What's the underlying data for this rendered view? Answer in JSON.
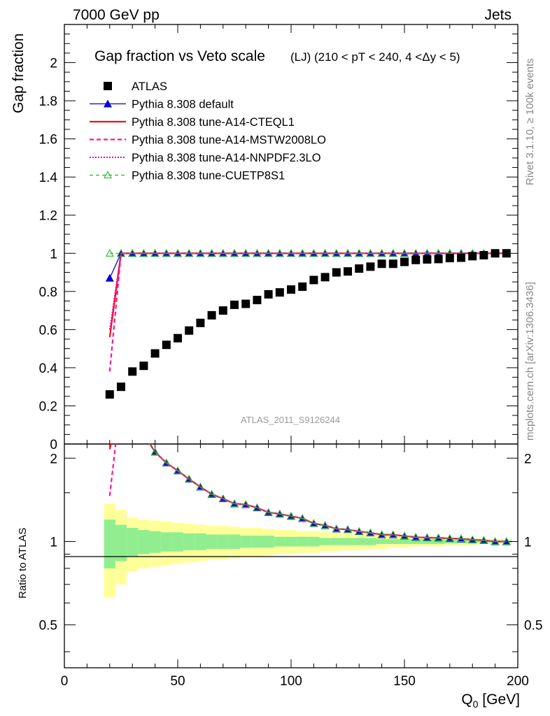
{
  "header": {
    "left": "7000 GeV pp",
    "right": "Jets"
  },
  "side_labels": {
    "upper": "Rivet 3.1.10, ≥ 100k events",
    "lower": "mcplots.cern.ch [arXiv:1306.3436]"
  },
  "watermark": "ATLAS_2011_S9126244",
  "chart_data": {
    "type": "scatter",
    "title": "Gap fraction vs Veto scale",
    "subtitle": "(LJ) (210 < pT < 240, 4 <Δy < 5)",
    "xlabel": "Q",
    "xlabel_sub": "0",
    "xlabel_unit": " [GeV]",
    "ylabel": "Gap fraction",
    "ratio_ylabel": "Ratio to ATLAS",
    "xlim": [
      0,
      200
    ],
    "ylim": [
      0,
      2.2
    ],
    "ratio_ylim": [
      0.35,
      2.25
    ],
    "x_ticks": [
      "0",
      "50",
      "100",
      "150",
      "200"
    ],
    "y_ticks": [
      "0",
      "0.2",
      "0.4",
      "0.6",
      "0.8",
      "1",
      "1.2",
      "1.4",
      "1.6",
      "1.8",
      "2"
    ],
    "ratio_ticks": [
      "0.5",
      "1",
      "2"
    ],
    "legend_position": "top-left",
    "x": [
      20,
      25,
      30,
      35,
      40,
      45,
      50,
      55,
      60,
      65,
      70,
      75,
      80,
      85,
      90,
      95,
      100,
      105,
      110,
      115,
      120,
      125,
      130,
      135,
      140,
      145,
      150,
      155,
      160,
      165,
      170,
      175,
      180,
      185,
      190,
      195
    ],
    "series": [
      {
        "name": "ATLAS",
        "color": "#000000",
        "marker": "square",
        "values": [
          0.26,
          0.3,
          0.38,
          0.41,
          0.475,
          0.52,
          0.555,
          0.595,
          0.635,
          0.675,
          0.7,
          0.73,
          0.735,
          0.755,
          0.785,
          0.795,
          0.81,
          0.825,
          0.86,
          0.875,
          0.9,
          0.905,
          0.92,
          0.93,
          0.945,
          0.945,
          0.955,
          0.965,
          0.968,
          0.97,
          0.975,
          0.977,
          0.985,
          0.99,
          1.0,
          1.0
        ]
      },
      {
        "name": "Pythia 8.308 default",
        "color": "#0000dd",
        "marker": "triangle",
        "values": [
          0.87,
          1.0,
          1.0,
          1.0,
          1.0,
          1.0,
          1.0,
          1.0,
          1.0,
          1.0,
          1.0,
          1.0,
          1.0,
          1.0,
          1.0,
          1.0,
          1.0,
          1.0,
          1.0,
          1.0,
          1.0,
          1.0,
          1.0,
          1.0,
          1.0,
          1.0,
          1.0,
          1.0,
          1.0,
          1.0,
          1.0,
          1.0,
          1.0,
          1.0,
          1.0,
          1.0
        ]
      },
      {
        "name": "Pythia 8.308 tune-A14-CTEQL1",
        "color": "#ee1111",
        "values": [
          0.56,
          1.0,
          1.0,
          1.0,
          1.0,
          1.0,
          1.0,
          1.0,
          1.0,
          1.0,
          1.0,
          1.0,
          1.0,
          1.0,
          1.0,
          1.0,
          1.0,
          1.0,
          1.0,
          1.0,
          1.0,
          1.0,
          1.0,
          1.0,
          1.0,
          1.0,
          1.0,
          1.0,
          1.0,
          1.0,
          1.0,
          1.0,
          1.0,
          1.0,
          1.0,
          1.0
        ]
      },
      {
        "name": "Pythia 8.308 tune-A14-MSTW2008LO",
        "color": "#ff1493",
        "values": [
          0.38,
          1.0,
          1.0,
          1.0,
          1.0,
          1.0,
          1.0,
          1.0,
          1.0,
          1.0,
          1.0,
          1.0,
          1.0,
          1.0,
          1.0,
          1.0,
          1.0,
          1.0,
          1.0,
          1.0,
          1.0,
          1.0,
          1.0,
          1.0,
          1.0,
          1.0,
          1.0,
          1.0,
          1.0,
          1.0,
          1.0,
          1.0,
          1.0,
          1.0,
          1.0,
          1.0
        ]
      },
      {
        "name": "Pythia 8.308 tune-A14-NNPDF2.3LO",
        "color": "#ee00aa",
        "values": [
          0.6,
          1.0,
          1.0,
          1.0,
          1.0,
          1.0,
          1.0,
          1.0,
          1.0,
          1.0,
          1.0,
          1.0,
          1.0,
          1.0,
          1.0,
          1.0,
          1.0,
          1.0,
          1.0,
          1.0,
          1.0,
          1.0,
          1.0,
          1.0,
          1.0,
          1.0,
          1.0,
          1.0,
          1.0,
          1.0,
          1.0,
          1.0,
          1.0,
          1.0,
          1.0,
          1.0
        ]
      },
      {
        "name": "Pythia 8.308 tune-CUETP8S1",
        "color": "#22bb22",
        "marker": "open-triangle",
        "values": [
          1.0,
          1.0,
          1.0,
          1.0,
          1.0,
          1.0,
          1.0,
          1.0,
          1.0,
          1.0,
          1.0,
          1.0,
          1.0,
          1.0,
          1.0,
          1.0,
          1.0,
          1.0,
          1.0,
          1.0,
          1.0,
          1.0,
          1.0,
          1.0,
          1.0,
          1.0,
          1.0,
          1.0,
          1.0,
          1.0,
          1.0,
          1.0,
          1.0,
          1.0,
          1.0,
          1.0
        ]
      }
    ],
    "ratio_bands": {
      "x_edges": [
        17.5,
        22.5,
        27.5,
        32.5,
        37.5,
        42.5,
        47.5,
        52.5,
        57.5,
        62.5,
        67.5,
        72.5,
        77.5,
        82.5,
        87.5,
        92.5,
        97.5,
        102.5,
        107.5,
        112.5,
        117.5,
        122.5,
        127.5,
        132.5,
        137.5,
        142.5,
        147.5,
        152.5,
        157.5,
        162.5,
        167.5,
        172.5,
        177.5,
        182.5,
        187.5,
        192.5,
        197.5
      ],
      "inner_color": "#90ee90",
      "outer_color": "#ffff99",
      "inner_up": [
        1.2,
        1.15,
        1.12,
        1.1,
        1.09,
        1.08,
        1.08,
        1.07,
        1.07,
        1.06,
        1.06,
        1.06,
        1.05,
        1.05,
        1.05,
        1.04,
        1.04,
        1.04,
        1.04,
        1.03,
        1.03,
        1.03,
        1.03,
        1.03,
        1.02,
        1.02,
        1.02,
        1.02,
        1.02,
        1.02,
        1.015,
        1.015,
        1.01,
        1.01,
        1.01,
        1.01
      ],
      "outer_up": [
        1.37,
        1.3,
        1.22,
        1.2,
        1.19,
        1.18,
        1.17,
        1.16,
        1.15,
        1.14,
        1.14,
        1.13,
        1.12,
        1.12,
        1.11,
        1.1,
        1.1,
        1.09,
        1.09,
        1.08,
        1.08,
        1.07,
        1.07,
        1.06,
        1.06,
        1.05,
        1.05,
        1.04,
        1.04,
        1.04,
        1.03,
        1.03,
        1.03,
        1.02,
        1.02,
        1.02
      ]
    }
  }
}
